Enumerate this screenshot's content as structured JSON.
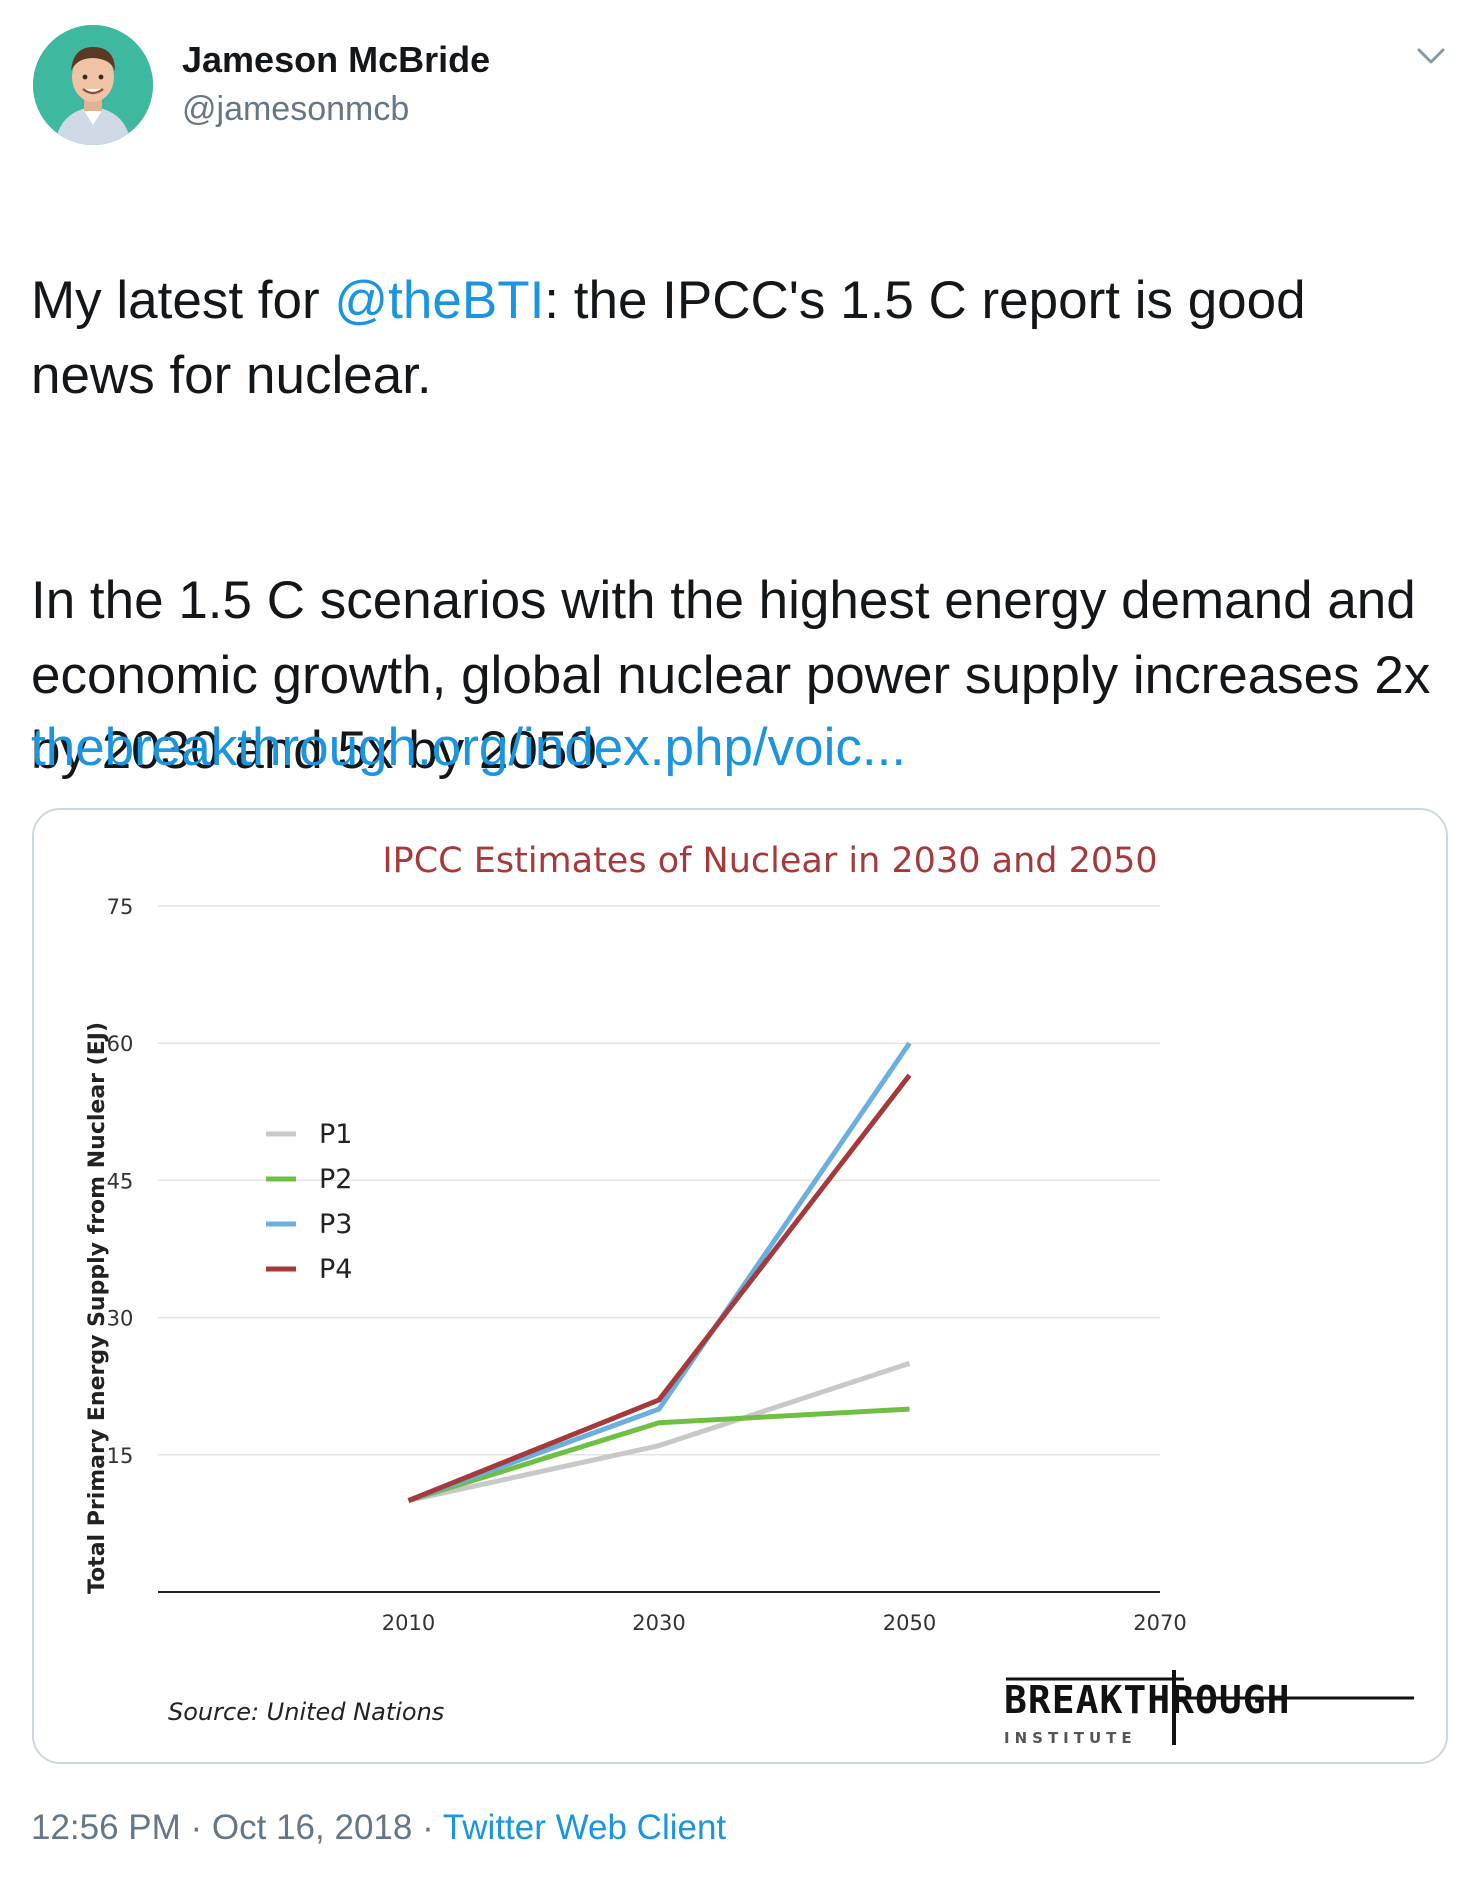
{
  "author": {
    "name": "Jameson McBride",
    "handle": "@jamesonmcb"
  },
  "tweet": {
    "line1_before": "My latest for ",
    "mention": "@theBTI",
    "line1_after": ": the IPCC's 1.5 C report is good news for nuclear.",
    "paragraph2": "In the 1.5 C scenarios with the highest energy demand and economic growth, global nuclear power supply increases 2x by 2030 and 5x by 2050.",
    "link": "thebreakthrough.org/index.php/voic..."
  },
  "footer": {
    "time": "12:56 PM",
    "separator1": " · ",
    "date": "Oct 16, 2018",
    "separator2": " · ",
    "client": "Twitter Web Client"
  },
  "chart_data": {
    "type": "line",
    "title": "IPCC Estimates of Nuclear in 2030 and 2050",
    "ylabel": "Total Primary Energy Supply from Nuclear (EJ)",
    "xlabel": "",
    "x": [
      2010,
      2030,
      2050
    ],
    "xticks": [
      2010,
      2030,
      2050,
      2070
    ],
    "yticks": [
      15,
      30,
      45,
      60,
      75
    ],
    "xlim": [
      1990,
      2070
    ],
    "ylim": [
      0,
      75
    ],
    "grid": true,
    "legend_position": "left",
    "series": [
      {
        "name": "P1",
        "color": "#c8c8c8",
        "values": [
          10,
          16,
          25
        ]
      },
      {
        "name": "P2",
        "color": "#6fbf44",
        "values": [
          10,
          18.5,
          20
        ]
      },
      {
        "name": "P3",
        "color": "#6aafe0",
        "values": [
          10,
          20,
          60
        ]
      },
      {
        "name": "P4",
        "color": "#a53a3a",
        "values": [
          10,
          21,
          56.5
        ]
      }
    ],
    "source": "Source: United Nations",
    "logo": {
      "main": "BREAKTHROUGH",
      "sub": "INSTITUTE"
    },
    "title_color": "#a63a3a"
  }
}
